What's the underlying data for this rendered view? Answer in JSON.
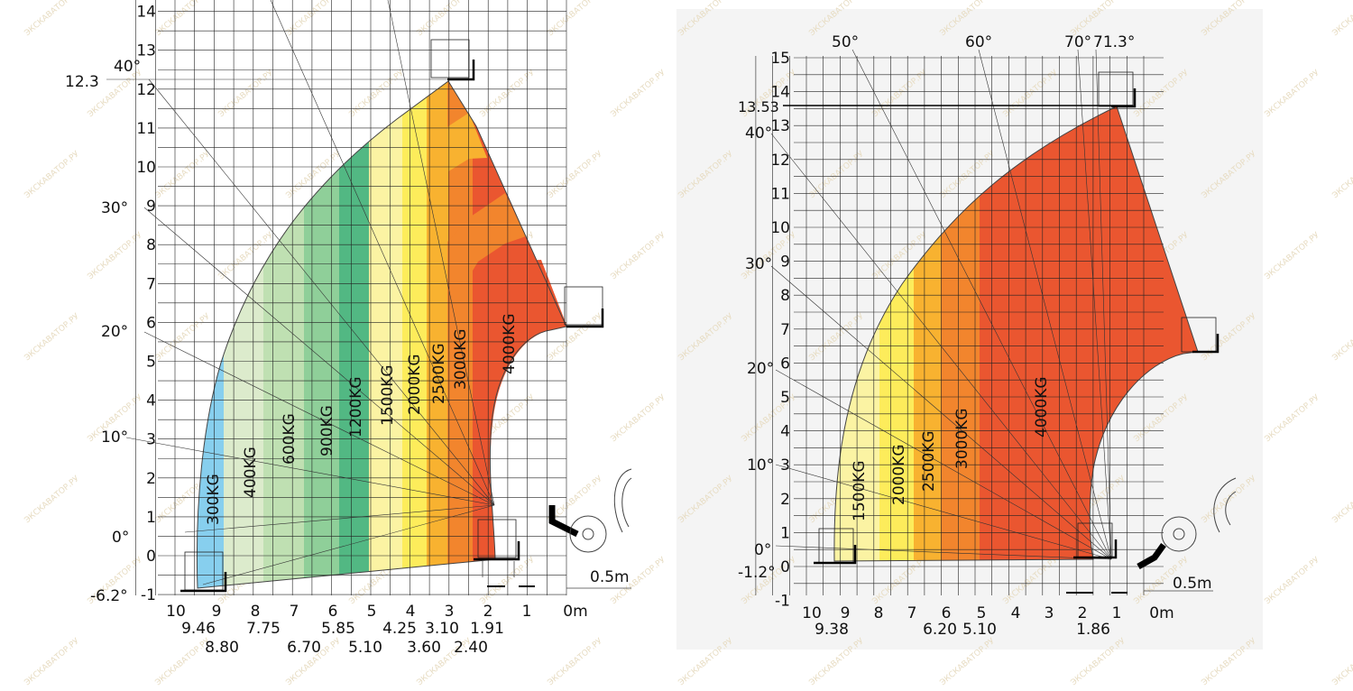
{
  "chart_data": [
    {
      "type": "load-chart",
      "x_unit_label": "0m",
      "x_ticks": [
        "10",
        "9",
        "8",
        "7",
        "6",
        "5",
        "4",
        "3",
        "2",
        "1",
        "0m"
      ],
      "y_ticks": [
        "-1",
        "0",
        "1",
        "2",
        "3",
        "4",
        "5",
        "6",
        "7",
        "8",
        "9",
        "10",
        "11",
        "12",
        "13",
        "14"
      ],
      "max_height_label": "12.3",
      "angle_labels": [
        "40°",
        "30°",
        "20°",
        "10°",
        "0°",
        "-6.2°"
      ],
      "distance_labels_row1": [
        "9.46",
        "7.75",
        "5.85",
        "4.25",
        "3.10",
        "1.91"
      ],
      "distance_labels_row2": [
        "8.80",
        "6.70",
        "5.10",
        "3.60",
        "2.40"
      ],
      "scale_label": "0.5m",
      "zones": [
        {
          "label": "300KG",
          "color": "#87cfee"
        },
        {
          "label": "400KG",
          "color": "#dcebcc"
        },
        {
          "label": "600KG",
          "color": "#bfe0b2"
        },
        {
          "label": "900KG",
          "color": "#8fcf99"
        },
        {
          "label": "1200KG",
          "color": "#52b883"
        },
        {
          "label": "1500KG",
          "color": "#fbf3a3"
        },
        {
          "label": "2000KG",
          "color": "#fdec5b"
        },
        {
          "label": "2500KG",
          "color": "#f8b230"
        },
        {
          "label": "3000KG",
          "color": "#f2852d"
        },
        {
          "label": "4000KG",
          "color": "#ea5630"
        }
      ]
    },
    {
      "type": "load-chart",
      "x_unit_label": "0m",
      "x_ticks": [
        "10",
        "9",
        "8",
        "7",
        "6",
        "5",
        "4",
        "3",
        "2",
        "1",
        "0m"
      ],
      "y_ticks": [
        "-1",
        "0",
        "1",
        "2",
        "3",
        "4",
        "5",
        "6",
        "7",
        "8",
        "9",
        "10",
        "11",
        "12",
        "13",
        "14",
        "15"
      ],
      "max_height_label": "13.53",
      "angle_labels": [
        "50°",
        "60°",
        "70°",
        "71.3°",
        "40°",
        "30°",
        "20°",
        "10°",
        "0°",
        "-1.2°"
      ],
      "distance_labels": [
        "9.38",
        "6.20",
        "5.10",
        "1.86"
      ],
      "scale_label": "0.5m",
      "zones": [
        {
          "label": "1500KG",
          "color": "#fbf3a3"
        },
        {
          "label": "2000KG",
          "color": "#fdec5b"
        },
        {
          "label": "2500KG",
          "color": "#f8b230"
        },
        {
          "label": "3000KG",
          "color": "#f2852d"
        },
        {
          "label": "4000KG",
          "color": "#ea5630"
        }
      ]
    }
  ],
  "watermark": "ЭКСКАВАТОР.РУ"
}
